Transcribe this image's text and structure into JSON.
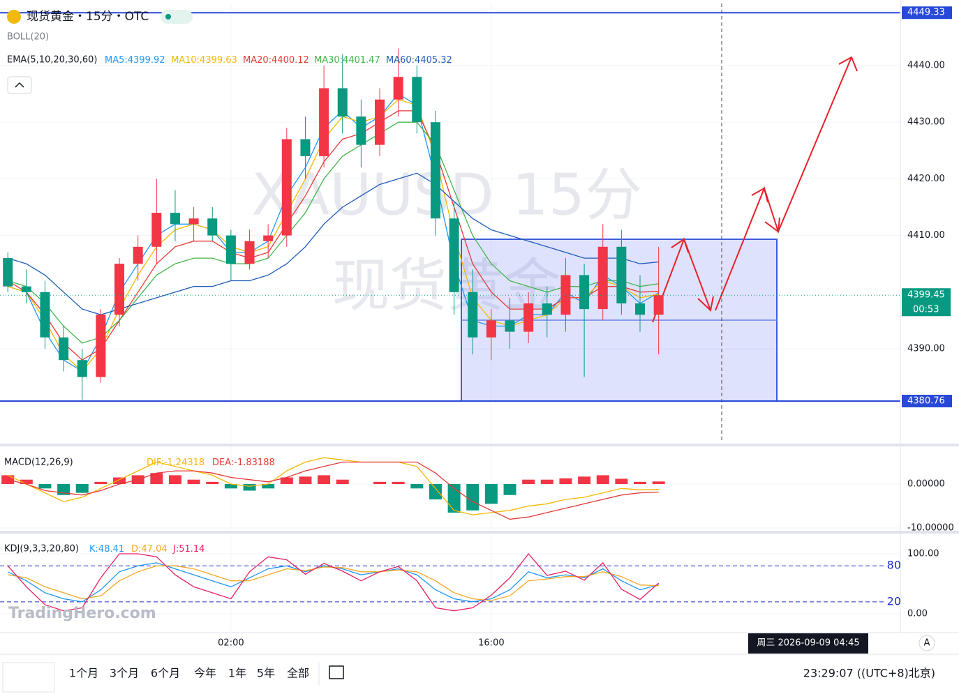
{
  "chart_data": [
    {
      "type": "candlestick",
      "title": "现货黄金・15分・OTC",
      "indicator": "BOLL(20)",
      "overlay_title": "EMA(5,10,20,30,60)",
      "legend_sep": ":",
      "watermark": [
        "XAUUSD 15分",
        "现货黄金"
      ],
      "up_color": "#f23645",
      "down_color": "#089981",
      "x": [
        -10,
        -9,
        -8,
        -7,
        -6,
        -5,
        -4,
        -3,
        -2,
        -1,
        0,
        1,
        2,
        3,
        4,
        5,
        6,
        7,
        8,
        9,
        10,
        11,
        12,
        13,
        14,
        15,
        16,
        17,
        18,
        19,
        20,
        21,
        22,
        23,
        24,
        25
      ],
      "open": [
        4406,
        4401,
        4400,
        4392,
        4388,
        4385,
        4396,
        4405,
        4408,
        4414,
        4412,
        4413,
        4410,
        4405,
        4409,
        4410,
        4427,
        4424,
        4436,
        4431,
        4426,
        4434,
        4438,
        4430,
        4413,
        4400,
        4392,
        4395,
        4393,
        4398,
        4396,
        4403,
        4397,
        4408,
        4398,
        4396
      ],
      "high": [
        4407,
        4404,
        4402,
        4394,
        4390,
        4397,
        4406,
        4410,
        4420,
        4418,
        4415,
        4415,
        4411,
        4411,
        4412,
        4429,
        4431,
        4440,
        4442,
        4434,
        4436,
        4443,
        4440,
        4432,
        4416,
        4404,
        4397,
        4399,
        4400,
        4401,
        4406,
        4405,
        4412,
        4411,
        4403,
        4408
      ],
      "low": [
        4400,
        4398,
        4390,
        4386,
        4381,
        4384,
        4394,
        4402,
        4405,
        4409,
        4409,
        4409,
        4402,
        4404,
        4406,
        4408,
        4420,
        4422,
        4428,
        4422,
        4424,
        4431,
        4428,
        4410,
        4396,
        4389,
        4388,
        4390,
        4391,
        4392,
        4393,
        4385,
        4395,
        4396,
        4393,
        4389
      ],
      "close": [
        4401,
        4400,
        4392,
        4388,
        4385,
        4396,
        4405,
        4408,
        4414,
        4412,
        4413,
        4410,
        4405,
        4409,
        4410,
        4427,
        4424,
        4436,
        4431,
        4426,
        4434,
        4438,
        4430,
        4413,
        4400,
        4392,
        4395,
        4393,
        4398,
        4396,
        4403,
        4397,
        4408,
        4398,
        4396,
        4399.45
      ],
      "countdown": "00:53",
      "series": [
        {
          "name": "MA5",
          "color": "#2196f3",
          "values": [
            4401,
            4400,
            4393,
            4388,
            4386,
            4392,
            4400,
            4405,
            4410,
            4412,
            4412,
            4411,
            4407,
            4407,
            4409,
            4417,
            4422,
            4429,
            4432,
            4429,
            4431,
            4435,
            4433,
            4420,
            4405,
            4395,
            4394,
            4394,
            4396,
            4396,
            4400,
            4398,
            4403,
            4401,
            4398,
            4399.92
          ]
        },
        {
          "name": "MA10",
          "color": "#f5b800",
          "values": [
            4401,
            4400,
            4395,
            4389,
            4386,
            4390,
            4397,
            4403,
            4408,
            4411,
            4412,
            4411,
            4408,
            4407,
            4408,
            4414,
            4420,
            4427,
            4431,
            4430,
            4431,
            4434,
            4433,
            4424,
            4410,
            4399,
            4395,
            4394,
            4395,
            4396,
            4399,
            4399,
            4402,
            4401,
            4399,
            4399.63
          ]
        },
        {
          "name": "MA20",
          "color": "#e53935",
          "values": [
            4402,
            4400,
            4396,
            4391,
            4388,
            4390,
            4395,
            4400,
            4405,
            4408,
            4409,
            4409,
            4407,
            4406,
            4407,
            4412,
            4417,
            4423,
            4427,
            4428,
            4430,
            4432,
            4432,
            4425,
            4415,
            4405,
            4400,
            4397,
            4397,
            4397,
            4399,
            4399,
            4401,
            4401,
            4400,
            4400.12
          ]
        },
        {
          "name": "MA30",
          "color": "#43b649",
          "values": [
            4402,
            4401,
            4398,
            4394,
            4391,
            4392,
            4395,
            4399,
            4403,
            4405,
            4406,
            4406,
            4405,
            4405,
            4406,
            4410,
            4414,
            4420,
            4424,
            4426,
            4428,
            4430,
            4430,
            4426,
            4418,
            4410,
            4405,
            4402,
            4401,
            4400,
            4401,
            4401,
            4402,
            4402,
            4401,
            4401.47
          ]
        },
        {
          "name": "MA60",
          "color": "#1e5bb8",
          "values": [
            4406,
            4405,
            4403,
            4400,
            4397,
            4396,
            4397,
            4398,
            4399,
            4400,
            4401,
            4401,
            4402,
            4402,
            4403,
            4405,
            4408,
            4412,
            4415,
            4417,
            4419,
            4420,
            4421,
            4419,
            4416,
            4413,
            4411,
            4410,
            4409,
            4408,
            4407,
            4406,
            4406,
            4406,
            4405,
            4405.32
          ]
        }
      ],
      "levels": [
        {
          "value": 4449.33,
          "color": "#2848d8"
        },
        {
          "value": 4380.76,
          "color": "#2848d8"
        }
      ],
      "xlim": [
        -10.42,
        38.0
      ],
      "xticks": [
        {
          "value": 2,
          "label": "02:00"
        },
        {
          "value": 16,
          "label": "16:00"
        }
      ],
      "ylim": [
        4373.37,
        4450.96
      ],
      "yticks": [
        {
          "value": 4390,
          "label": "4390.00"
        },
        {
          "value": 4410,
          "label": "4410.00"
        },
        {
          "value": 4420,
          "label": "4420.00"
        },
        {
          "value": 4430,
          "label": "4430.00"
        },
        {
          "value": 4440,
          "label": "4440.00"
        }
      ],
      "grid": true
    },
    {
      "type": "macd",
      "title": "MACD(12,26,9)",
      "legend_sep": ":",
      "histogram": {
        "up_color": "#f23645",
        "down_color": "#089981",
        "values": [
          2,
          1,
          -1,
          -2.5,
          -2,
          0.5,
          1.5,
          2,
          2.5,
          2,
          1,
          0.5,
          -1,
          -1.5,
          -1,
          1.5,
          1.7,
          2,
          1,
          0,
          0.5,
          0.5,
          -1,
          -3.5,
          -6.5,
          -6,
          -4.5,
          -2.5,
          1,
          1,
          1.3,
          1.7,
          2,
          1.2,
          0.5,
          0.59
        ]
      },
      "series": [
        {
          "name": "DIF",
          "color": "#f5b800",
          "values": [
            2,
            0,
            -2,
            -4,
            -3,
            -1,
            1,
            3,
            5,
            4,
            3,
            2,
            0,
            -0.5,
            0,
            3,
            5,
            6,
            5.5,
            5,
            5,
            5,
            4,
            -1,
            -6,
            -7,
            -6.5,
            -6,
            -5,
            -4.5,
            -3.5,
            -3,
            -2,
            -1,
            -1.3,
            -1.24318
          ]
        },
        {
          "name": "DEA",
          "color": "#e53935",
          "values": [
            1,
            0,
            -1.5,
            -2,
            -2.5,
            -1.5,
            0,
            1,
            2.5,
            3,
            3,
            2.5,
            1.5,
            1,
            0.5,
            1.5,
            3,
            4,
            5,
            5,
            5,
            5,
            5,
            2.5,
            -1,
            -4,
            -6,
            -8,
            -7.5,
            -6.5,
            -5.5,
            -4.5,
            -3.5,
            -2.5,
            -2,
            -1.83188
          ]
        }
      ],
      "ylim": [
        -10.48,
        8.57
      ],
      "yticks": [
        {
          "value": 0,
          "label": "0.00000"
        },
        {
          "value": -10,
          "label": "-10.00000"
        }
      ]
    },
    {
      "type": "kdj",
      "title": "KDJ(9,3,3,20,80)",
      "legend_sep": ":",
      "series": [
        {
          "name": "K",
          "color": "#2196f3",
          "values": [
            70,
            55,
            35,
            25,
            20,
            40,
            70,
            80,
            85,
            75,
            65,
            55,
            45,
            60,
            75,
            80,
            70,
            80,
            75,
            65,
            70,
            75,
            65,
            40,
            25,
            20,
            25,
            40,
            70,
            60,
            65,
            60,
            75,
            55,
            40,
            48.41
          ]
        },
        {
          "name": "D",
          "color": "#f5a623",
          "values": [
            65,
            60,
            45,
            35,
            25,
            30,
            55,
            70,
            80,
            80,
            75,
            65,
            55,
            55,
            65,
            75,
            72,
            78,
            77,
            70,
            70,
            73,
            70,
            55,
            35,
            25,
            22,
            30,
            55,
            58,
            62,
            62,
            70,
            62,
            48,
            47.04
          ]
        },
        {
          "name": "J",
          "color": "#e91e63",
          "values": [
            80,
            45,
            15,
            5,
            10,
            60,
            100,
            100,
            95,
            65,
            45,
            35,
            25,
            70,
            95,
            90,
            66,
            84,
            71,
            55,
            70,
            79,
            55,
            10,
            5,
            10,
            31,
            60,
            100,
            64,
            71,
            56,
            85,
            41,
            24,
            51.14
          ]
        }
      ],
      "ref_lines": [
        80,
        20
      ],
      "ref_color": "#1e2fc8",
      "ylim": [
        -29,
        130.2
      ],
      "yticks": [
        {
          "value": 100,
          "label": "100.00"
        },
        {
          "value": 0,
          "label": "0.00"
        }
      ]
    }
  ],
  "brand": "TradingHero.com",
  "toolbar": {
    "ranges": [
      "1个月",
      "3个月",
      "6个月",
      "今年",
      "1年",
      "5年",
      "全部"
    ],
    "clock": "23:29:07 ((UTC+8)北京)",
    "crosshair_time": "周三 2026-09-09  04:45",
    "scale_mode": "A"
  }
}
